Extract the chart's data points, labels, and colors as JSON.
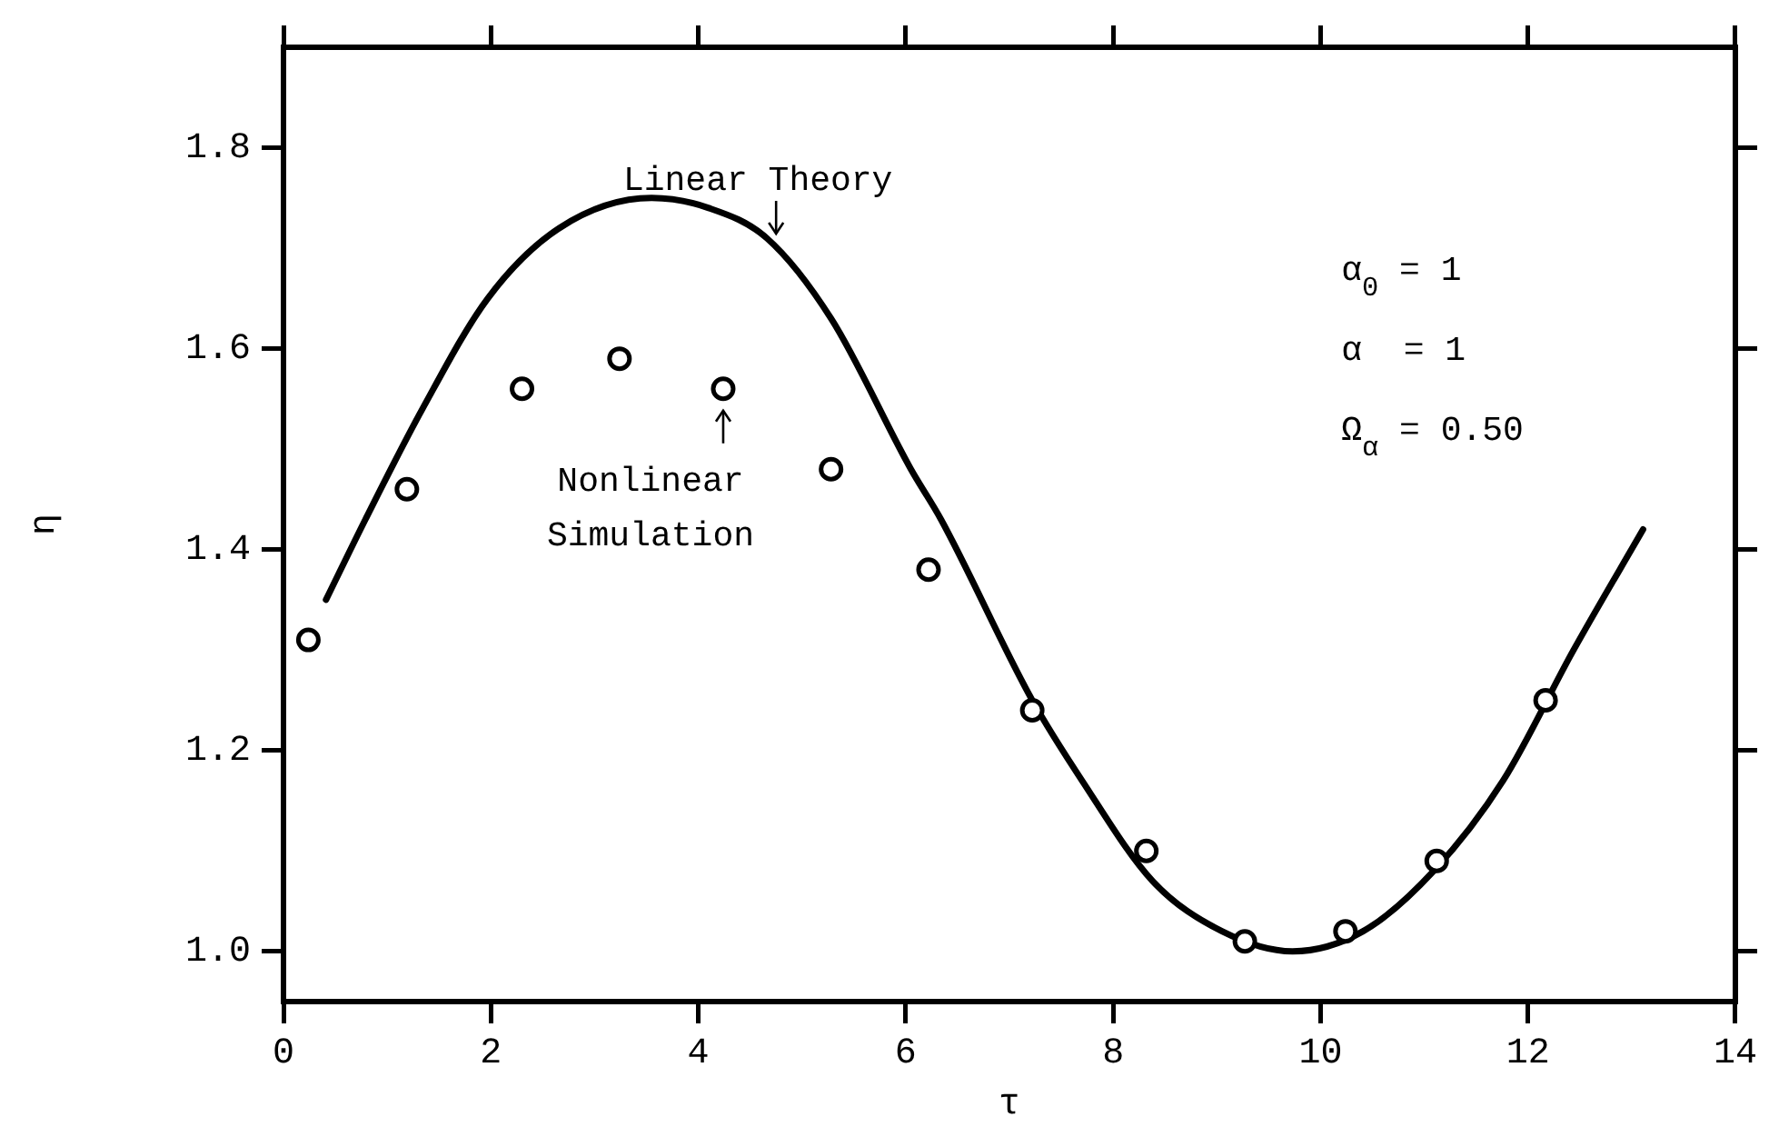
{
  "chart_data": {
    "type": "line",
    "xlabel": "τ",
    "ylabel": "η",
    "xlim": [
      0,
      14
    ],
    "ylim": [
      0.95,
      1.9
    ],
    "xticks": [
      0,
      2,
      4,
      6,
      8,
      10,
      12,
      14
    ],
    "yticks": [
      {
        "value": 1.0,
        "label": "1.0"
      },
      {
        "value": 1.2,
        "label": "1.2"
      },
      {
        "value": 1.4,
        "label": "1.4"
      },
      {
        "value": 1.6,
        "label": "1.6"
      },
      {
        "value": 1.8,
        "label": "1.8"
      }
    ],
    "legend": false,
    "series": [
      {
        "type": "line",
        "color": "#000000",
        "marker": "none",
        "line_style": "solid",
        "x": [
          0.41,
          0.79,
          1.34,
          1.97,
          2.66,
          3.55,
          4.1,
          4.66,
          5.28,
          6.05,
          6.34,
          7.22,
          7.7,
          8.38,
          9.05,
          9.73,
          10.41,
          11.09,
          11.76,
          12.44,
          13.11
        ],
        "values": [
          1.35,
          1.43,
          1.54,
          1.65,
          1.72,
          1.75,
          1.74,
          1.71,
          1.63,
          1.48,
          1.43,
          1.25,
          1.17,
          1.07,
          1.02,
          1.0,
          1.02,
          1.08,
          1.17,
          1.3,
          1.42
        ]
      },
      {
        "type": "scatter",
        "color": "#000000",
        "marker": "circle",
        "x": [
          0.24,
          1.19,
          2.3,
          3.24,
          4.24,
          5.28,
          6.22,
          7.22,
          8.32,
          9.27,
          10.24,
          11.12,
          12.17
        ],
        "values": [
          1.31,
          1.46,
          1.56,
          1.59,
          1.56,
          1.48,
          1.38,
          1.24,
          1.1,
          1.01,
          1.02,
          1.09,
          1.25
        ]
      }
    ],
    "annotations": [
      {
        "text": "Linear Theory",
        "x": 4.75,
        "y": 1.7
      },
      {
        "text": "Nonlinear\nSimulation",
        "x": 4.24,
        "y": 1.56
      },
      "α$_{0}$ = 1",
      "α  = 1",
      "Ω$_{α}$ = 0.50"
    ]
  }
}
